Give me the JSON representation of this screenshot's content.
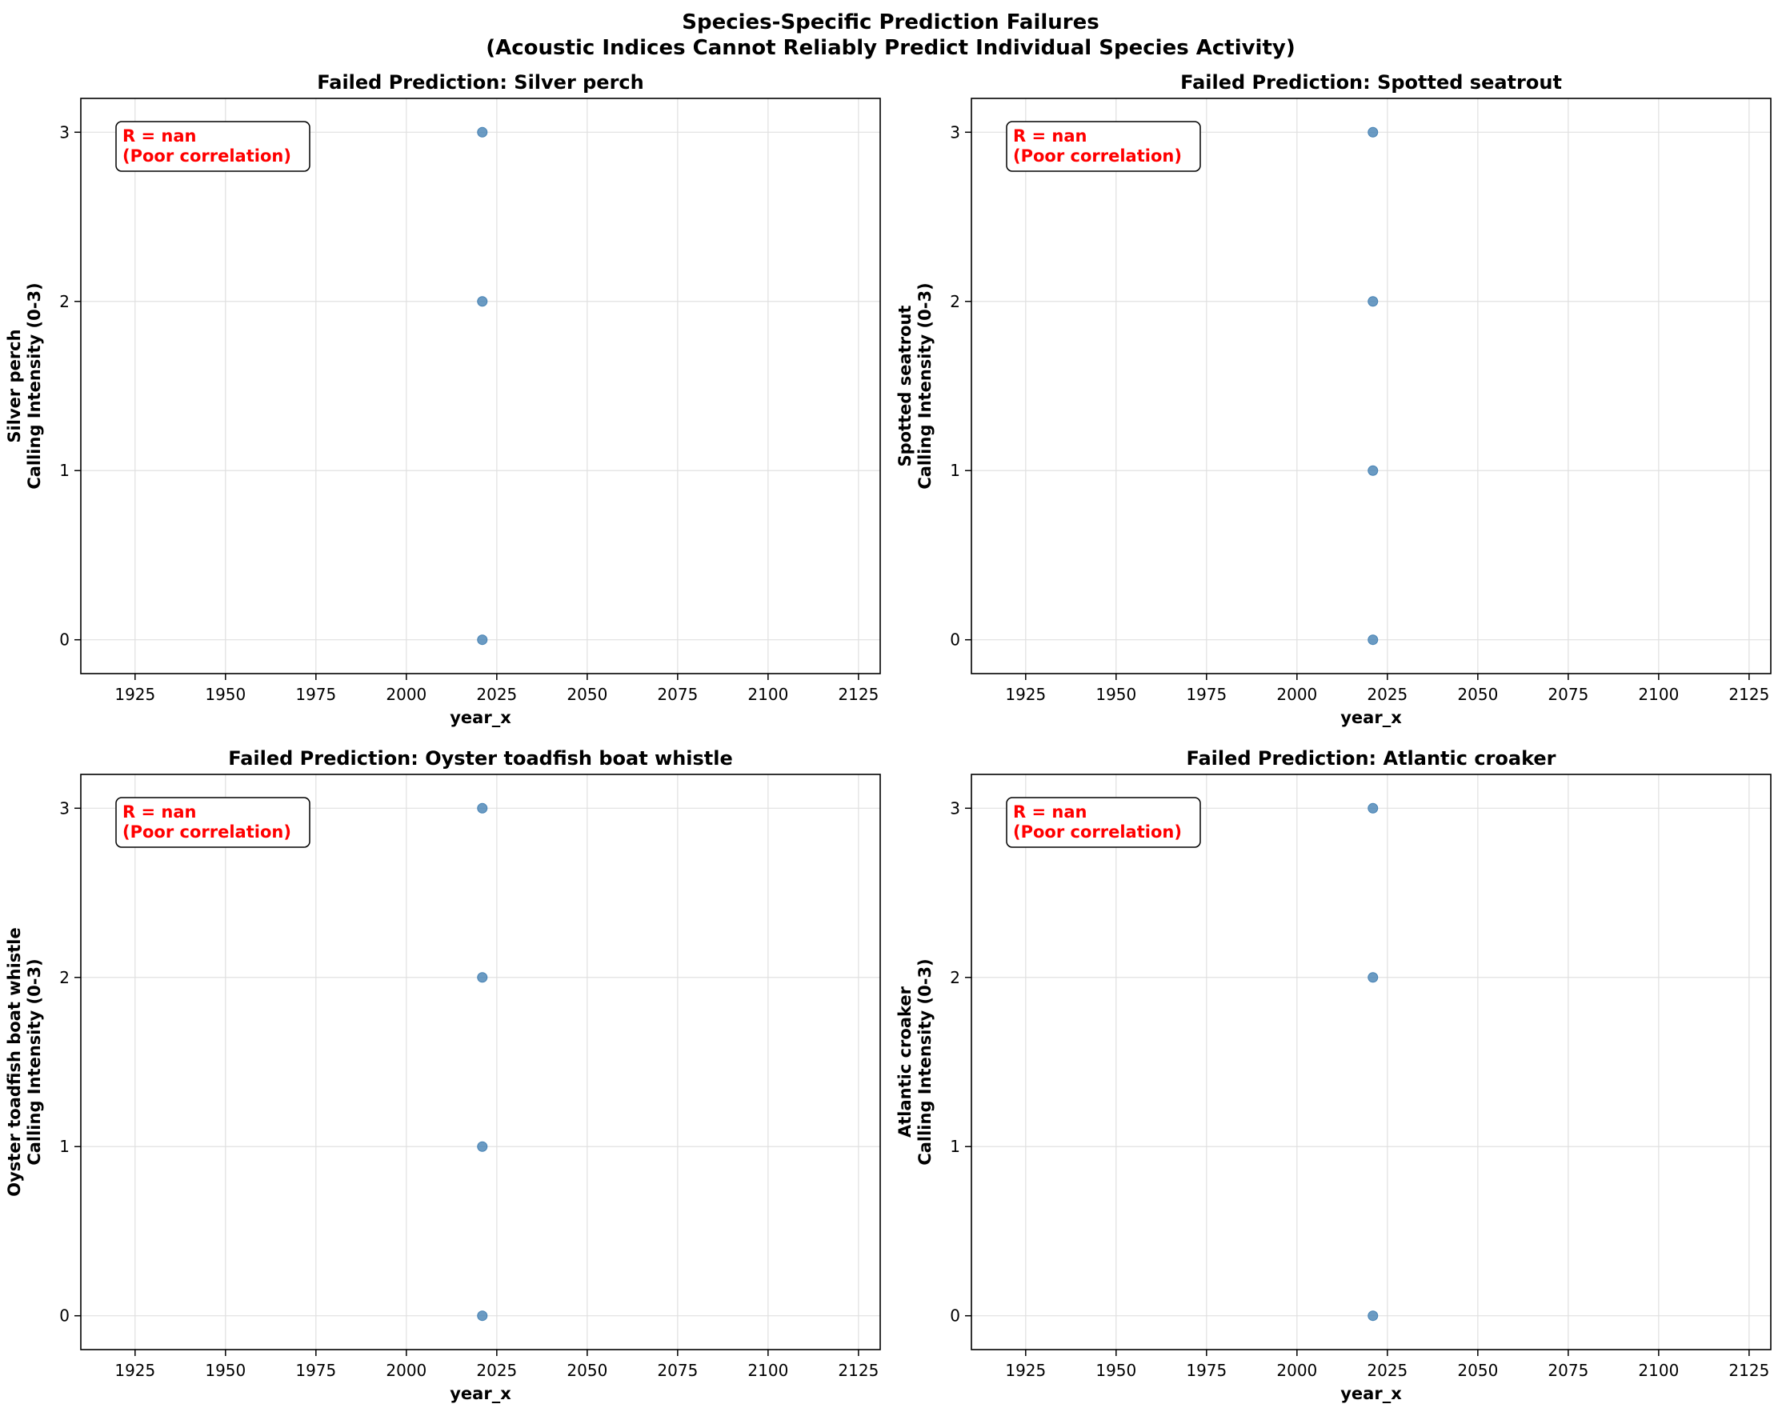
{
  "figure": {
    "suptitle_line1": "Species-Specific Prediction Failures",
    "suptitle_line2": "(Acoustic Indices Cannot Reliably Predict Individual Species Activity)"
  },
  "colors": {
    "point": "#4682b4",
    "annotation_text": "#ff0000",
    "grid": "#e0e0e0",
    "axes": "#000000"
  },
  "chart_data": [
    {
      "type": "scatter",
      "title": "Failed Prediction: Silver perch",
      "xlabel": "year_x",
      "ylabel": [
        "Silver perch",
        "Calling Intensity (0-3)"
      ],
      "xlim": [
        1910,
        2131
      ],
      "ylim": [
        -0.2,
        3.2
      ],
      "xticks": [
        1925,
        1950,
        1975,
        2000,
        2025,
        2050,
        2075,
        2100,
        2125
      ],
      "yticks": [
        0,
        1,
        2,
        3
      ],
      "grid": true,
      "annotation": [
        "R = nan",
        "(Poor correlation)"
      ],
      "points": [
        {
          "x": 2021,
          "y": 3
        },
        {
          "x": 2021,
          "y": 2
        },
        {
          "x": 2021,
          "y": 0
        }
      ]
    },
    {
      "type": "scatter",
      "title": "Failed Prediction: Spotted seatrout",
      "xlabel": "year_x",
      "ylabel": [
        "Spotted seatrout",
        "Calling Intensity (0-3)"
      ],
      "xlim": [
        1910,
        2131
      ],
      "ylim": [
        -0.2,
        3.2
      ],
      "xticks": [
        1925,
        1950,
        1975,
        2000,
        2025,
        2050,
        2075,
        2100,
        2125
      ],
      "yticks": [
        0,
        1,
        2,
        3
      ],
      "grid": true,
      "annotation": [
        "R = nan",
        "(Poor correlation)"
      ],
      "points": [
        {
          "x": 2021,
          "y": 3
        },
        {
          "x": 2021,
          "y": 2
        },
        {
          "x": 2021,
          "y": 1
        },
        {
          "x": 2021,
          "y": 0
        }
      ]
    },
    {
      "type": "scatter",
      "title": "Failed Prediction: Oyster toadfish boat whistle",
      "xlabel": "year_x",
      "ylabel": [
        "Oyster toadfish boat whistle",
        "Calling Intensity (0-3)"
      ],
      "xlim": [
        1910,
        2131
      ],
      "ylim": [
        -0.2,
        3.2
      ],
      "xticks": [
        1925,
        1950,
        1975,
        2000,
        2025,
        2050,
        2075,
        2100,
        2125
      ],
      "yticks": [
        0,
        1,
        2,
        3
      ],
      "grid": true,
      "annotation": [
        "R = nan",
        "(Poor correlation)"
      ],
      "points": [
        {
          "x": 2021,
          "y": 3
        },
        {
          "x": 2021,
          "y": 2
        },
        {
          "x": 2021,
          "y": 1
        },
        {
          "x": 2021,
          "y": 0
        }
      ]
    },
    {
      "type": "scatter",
      "title": "Failed Prediction: Atlantic croaker",
      "xlabel": "year_x",
      "ylabel": [
        "Atlantic croaker",
        "Calling Intensity (0-3)"
      ],
      "xlim": [
        1910,
        2131
      ],
      "ylim": [
        -0.2,
        3.2
      ],
      "xticks": [
        1925,
        1950,
        1975,
        2000,
        2025,
        2050,
        2075,
        2100,
        2125
      ],
      "yticks": [
        0,
        1,
        2,
        3
      ],
      "grid": true,
      "annotation": [
        "R = nan",
        "(Poor correlation)"
      ],
      "points": [
        {
          "x": 2021,
          "y": 3
        },
        {
          "x": 2021,
          "y": 2
        },
        {
          "x": 2021,
          "y": 0
        }
      ]
    }
  ]
}
